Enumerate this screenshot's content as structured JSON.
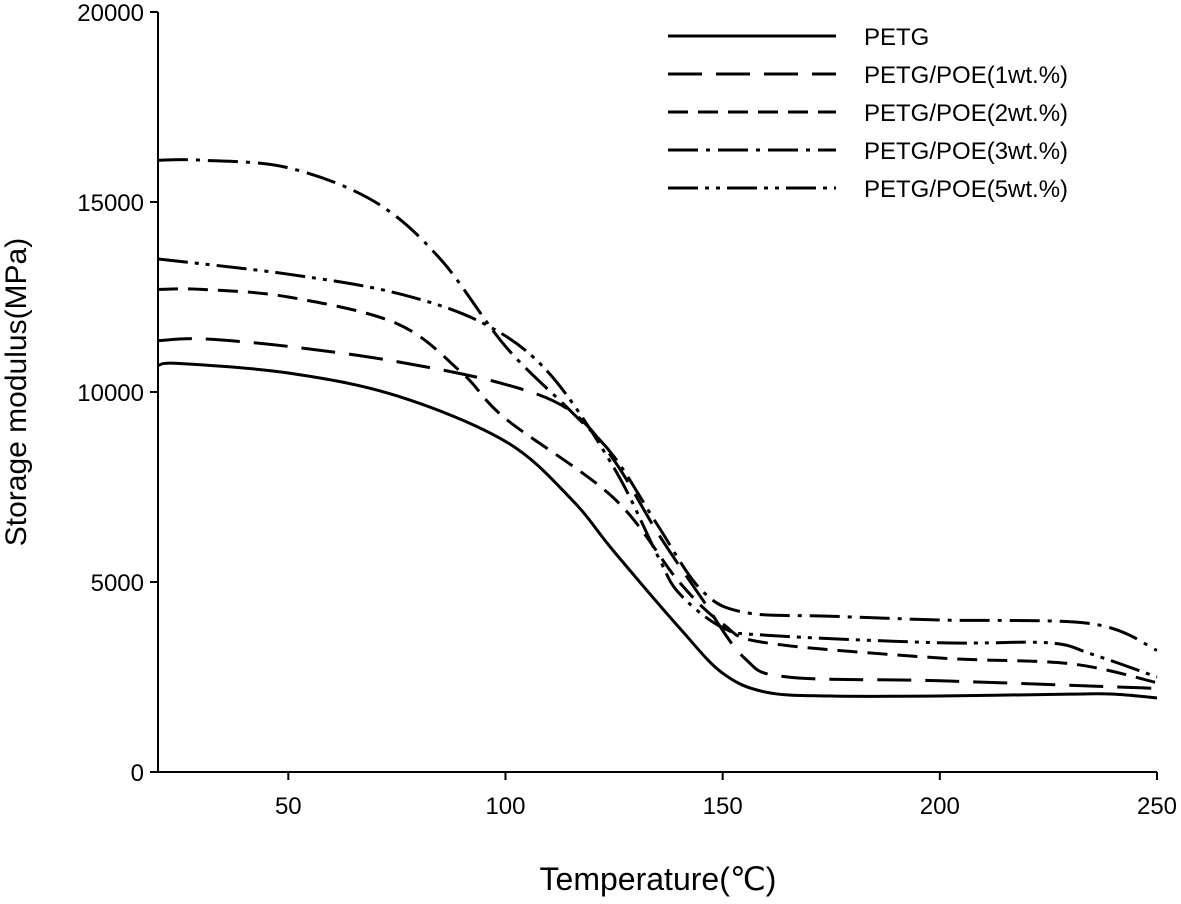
{
  "chart_data": {
    "type": "line",
    "title": "",
    "xlabel": "Temperature(℃)",
    "ylabel": "Storage modulus(MPa)",
    "xlim": [
      20,
      250
    ],
    "ylim": [
      0,
      20000
    ],
    "xticks": [
      50,
      100,
      150,
      200,
      250
    ],
    "yticks": [
      0,
      5000,
      10000,
      15000,
      20000
    ],
    "grid": false,
    "legend_position": "top-right",
    "series": [
      {
        "name": "PETG",
        "style": "solid",
        "x": [
          20,
          25,
          50,
          75,
          100,
          115,
          125,
          140,
          150,
          160,
          175,
          200,
          230,
          240,
          250
        ],
        "y": [
          10700,
          10750,
          10500,
          9900,
          8700,
          7200,
          5800,
          3800,
          2600,
          2100,
          2000,
          2000,
          2050,
          2050,
          1950
        ]
      },
      {
        "name": "PETG/POE(1wt.%)",
        "style": "long-dash",
        "x": [
          20,
          30,
          50,
          75,
          100,
          115,
          125,
          135,
          145,
          155,
          165,
          200,
          250
        ],
        "y": [
          11350,
          11400,
          11200,
          10800,
          10200,
          9500,
          8200,
          6300,
          4600,
          3000,
          2500,
          2400,
          2200
        ]
      },
      {
        "name": "PETG/POE(2wt.%)",
        "style": "short-dash",
        "x": [
          20,
          30,
          50,
          75,
          90,
          100,
          125,
          140,
          150,
          160,
          200,
          230,
          250
        ],
        "y": [
          12700,
          12700,
          12500,
          11800,
          10500,
          9300,
          7200,
          5000,
          3900,
          3400,
          3000,
          2850,
          2350
        ]
      },
      {
        "name": "PETG/POE(3wt.%)",
        "style": "dash-dot",
        "x": [
          20,
          30,
          50,
          70,
          85,
          100,
          115,
          125,
          135,
          145,
          155,
          175,
          200,
          235,
          250
        ],
        "y": [
          16100,
          16100,
          15900,
          15000,
          13500,
          11200,
          9500,
          8300,
          6500,
          4800,
          4200,
          4100,
          4000,
          3900,
          3200
        ]
      },
      {
        "name": "PETG/POE(5wt.%)",
        "style": "dash-dot-dot",
        "x": [
          20,
          50,
          75,
          95,
          110,
          125,
          135,
          140,
          150,
          160,
          200,
          225,
          235,
          250
        ],
        "y": [
          13500,
          13100,
          12600,
          11800,
          10500,
          8000,
          5700,
          4700,
          3800,
          3600,
          3400,
          3400,
          3100,
          2500
        ]
      }
    ]
  }
}
